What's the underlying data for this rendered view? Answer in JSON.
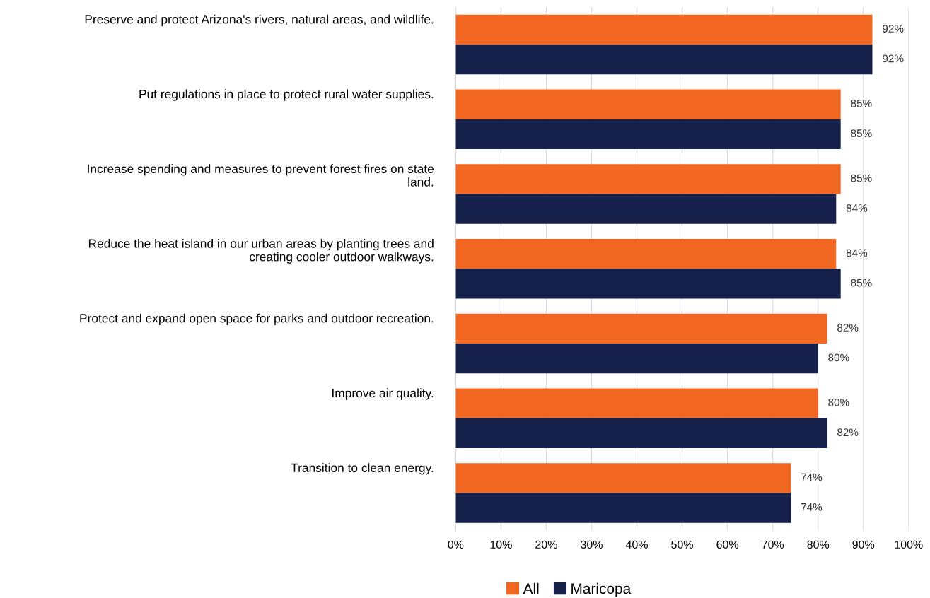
{
  "chart_data": {
    "type": "bar",
    "orientation": "horizontal",
    "categories": [
      "Preserve and protect Arizona's rivers, natural areas, and wildlife.",
      "Put regulations in place to protect rural water supplies.",
      "Increase spending and measures to prevent forest fires on state\nland.",
      "Reduce the heat island in our urban areas by planting trees and\ncreating cooler outdoor walkways.",
      "Protect and expand open space for parks and outdoor recreation.",
      "Improve air quality.",
      "Transition to clean energy."
    ],
    "series": [
      {
        "name": "All",
        "color": "#f26722",
        "values": [
          92,
          85,
          85,
          84,
          82,
          80,
          74
        ],
        "value_labels": [
          "92%",
          "85%",
          "85%",
          "84%",
          "82%",
          "80%",
          "74%"
        ]
      },
      {
        "name": "Maricopa",
        "color": "#15214a",
        "values": [
          92,
          85,
          84,
          85,
          80,
          82,
          74
        ],
        "value_labels": [
          "92%",
          "85%",
          "84%",
          "85%",
          "80%",
          "82%",
          "74%"
        ]
      }
    ],
    "xlim": [
      0,
      100
    ],
    "xticks": [
      {
        "value": 0,
        "label": "0%"
      },
      {
        "value": 10,
        "label": "10%"
      },
      {
        "value": 20,
        "label": "20%"
      },
      {
        "value": 30,
        "label": "30%"
      },
      {
        "value": 40,
        "label": "40%"
      },
      {
        "value": 50,
        "label": "50%"
      },
      {
        "value": 60,
        "label": "60%"
      },
      {
        "value": 70,
        "label": "70%"
      },
      {
        "value": 80,
        "label": "80%"
      },
      {
        "value": 90,
        "label": "90%"
      },
      {
        "value": 100,
        "label": "100%"
      }
    ],
    "grid": "x",
    "legend": "bottom"
  }
}
